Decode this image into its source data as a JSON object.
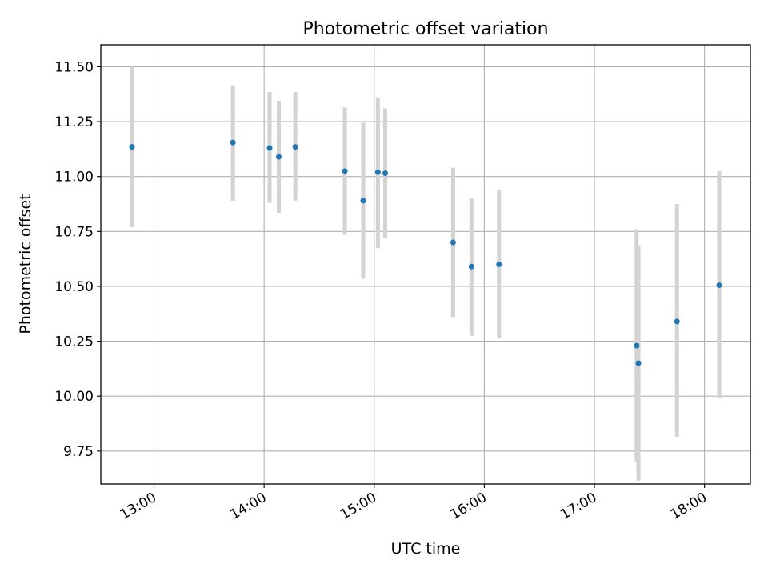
{
  "chart_data": {
    "type": "scatter",
    "title": "Photometric offset variation",
    "xlabel": "UTC time",
    "ylabel": "Photometric offset",
    "xlim": [
      "12:31",
      "18:25"
    ],
    "ylim": [
      9.6,
      11.6
    ],
    "x_ticks": [
      "13:00",
      "14:00",
      "15:00",
      "16:00",
      "17:00",
      "18:00"
    ],
    "y_ticks": [
      "9.75",
      "10.00",
      "10.25",
      "10.50",
      "10.75",
      "11.00",
      "11.25",
      "11.50"
    ],
    "grid": true,
    "colors": {
      "points": "#1f77b4",
      "errorbars": "#d3d3d3",
      "grid": "#b0b0b0"
    },
    "series": [
      {
        "points": [
          {
            "x": "12:48",
            "y": 11.135,
            "ylow": 10.77,
            "yhigh": 11.5
          },
          {
            "x": "13:43",
            "y": 11.155,
            "ylow": 10.89,
            "yhigh": 11.415
          },
          {
            "x": "14:03",
            "y": 11.13,
            "ylow": 10.88,
            "yhigh": 11.385
          },
          {
            "x": "14:08",
            "y": 11.09,
            "ylow": 10.835,
            "yhigh": 11.345
          },
          {
            "x": "14:17",
            "y": 11.135,
            "ylow": 10.89,
            "yhigh": 11.385
          },
          {
            "x": "14:44",
            "y": 11.025,
            "ylow": 10.735,
            "yhigh": 11.315
          },
          {
            "x": "14:54",
            "y": 10.89,
            "ylow": 10.535,
            "yhigh": 11.245
          },
          {
            "x": "15:02",
            "y": 11.02,
            "ylow": 10.675,
            "yhigh": 11.36
          },
          {
            "x": "15:06",
            "y": 11.015,
            "ylow": 10.72,
            "yhigh": 11.31
          },
          {
            "x": "15:43",
            "y": 10.7,
            "ylow": 10.36,
            "yhigh": 11.04
          },
          {
            "x": "15:53",
            "y": 10.59,
            "ylow": 10.275,
            "yhigh": 10.9
          },
          {
            "x": "16:08",
            "y": 10.6,
            "ylow": 10.265,
            "yhigh": 10.94
          },
          {
            "x": "17:23",
            "y": 10.23,
            "ylow": 9.7,
            "yhigh": 10.76
          },
          {
            "x": "17:24",
            "y": 10.15,
            "ylow": 9.615,
            "yhigh": 10.685
          },
          {
            "x": "17:45",
            "y": 10.34,
            "ylow": 9.815,
            "yhigh": 10.875
          },
          {
            "x": "18:08",
            "y": 10.505,
            "ylow": 9.99,
            "yhigh": 11.025
          }
        ]
      }
    ]
  }
}
